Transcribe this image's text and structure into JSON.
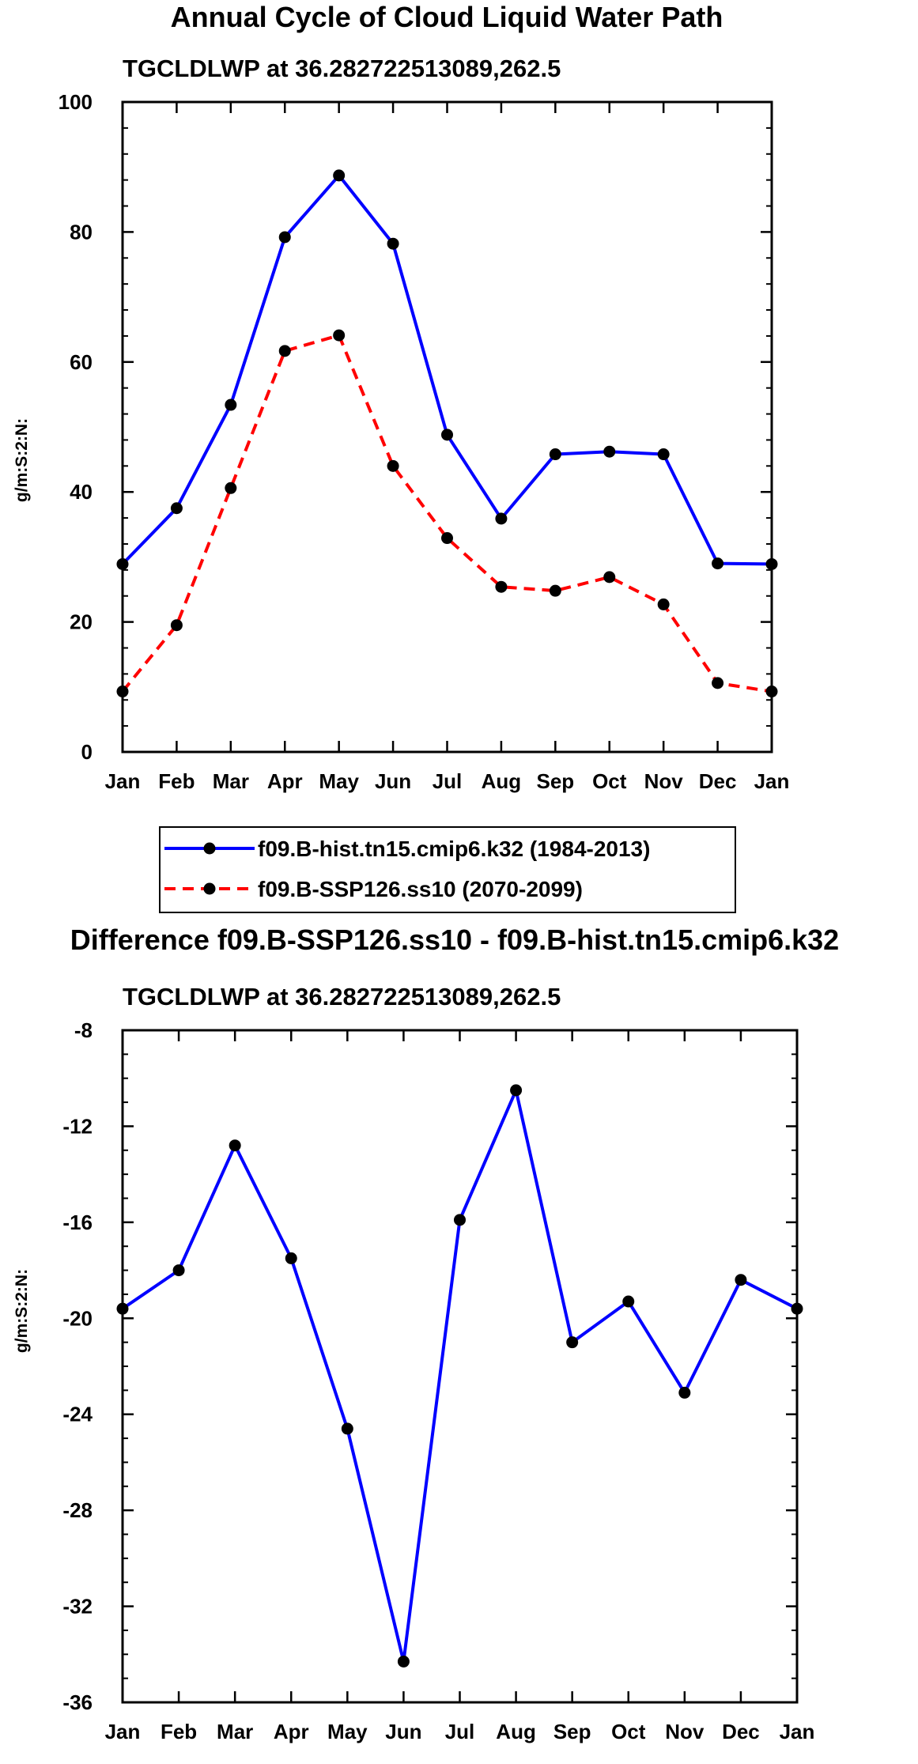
{
  "chart_data": [
    {
      "type": "line",
      "title": "Annual Cycle of Cloud Liquid Water Path",
      "subtitle": "TGCLDLWP at 36.282722513089,262.5",
      "xlabel": "",
      "ylabel": "g/m:S:2:N:",
      "categories": [
        "Jan",
        "Feb",
        "Mar",
        "Apr",
        "May",
        "Jun",
        "Jul",
        "Aug",
        "Sep",
        "Oct",
        "Nov",
        "Dec",
        "Jan"
      ],
      "ylim": [
        0,
        100
      ],
      "yticks": [
        "0",
        "20",
        "40",
        "60",
        "80",
        "100"
      ],
      "ytick_values": [
        0,
        20,
        40,
        60,
        80,
        100
      ],
      "series": [
        {
          "name": "f09.B-hist.tn15.cmip6.k32 (1984-2013)",
          "color": "#0000ff",
          "dash": "solid",
          "values": [
            28.9,
            37.5,
            53.4,
            79.2,
            88.7,
            78.2,
            48.8,
            35.9,
            45.8,
            46.2,
            45.8,
            29.0,
            28.9
          ]
        },
        {
          "name": "f09.B-SSP126.ss10 (2070-2099)",
          "color": "#ff0000",
          "dash": "dashed",
          "values": [
            9.3,
            19.5,
            40.6,
            61.7,
            64.1,
            44.0,
            32.9,
            25.4,
            24.8,
            26.9,
            22.7,
            10.6,
            9.3
          ]
        }
      ],
      "legend": "bottom"
    },
    {
      "type": "line",
      "title": "Difference f09.B-SSP126.ss10 - f09.B-hist.tn15.cmip6.k32",
      "subtitle": "TGCLDLWP at 36.282722513089,262.5",
      "xlabel": "",
      "ylabel": "g/m:S:2:N:",
      "categories": [
        "Jan",
        "Feb",
        "Mar",
        "Apr",
        "May",
        "Jun",
        "Jul",
        "Aug",
        "Sep",
        "Oct",
        "Nov",
        "Dec",
        "Jan"
      ],
      "ylim": [
        -36,
        -8
      ],
      "yticks": [
        "-36",
        "-32",
        "-28",
        "-24",
        "-20",
        "-16",
        "-12",
        "-8"
      ],
      "ytick_values": [
        -36,
        -32,
        -28,
        -24,
        -20,
        -16,
        -12,
        -8
      ],
      "series": [
        {
          "name": "Difference",
          "color": "#0000ff",
          "dash": "solid",
          "values": [
            -19.6,
            -18.0,
            -12.8,
            -17.5,
            -24.6,
            -34.3,
            -15.9,
            -10.5,
            -21.0,
            -19.3,
            -23.1,
            -18.4,
            -19.6
          ]
        }
      ]
    }
  ]
}
